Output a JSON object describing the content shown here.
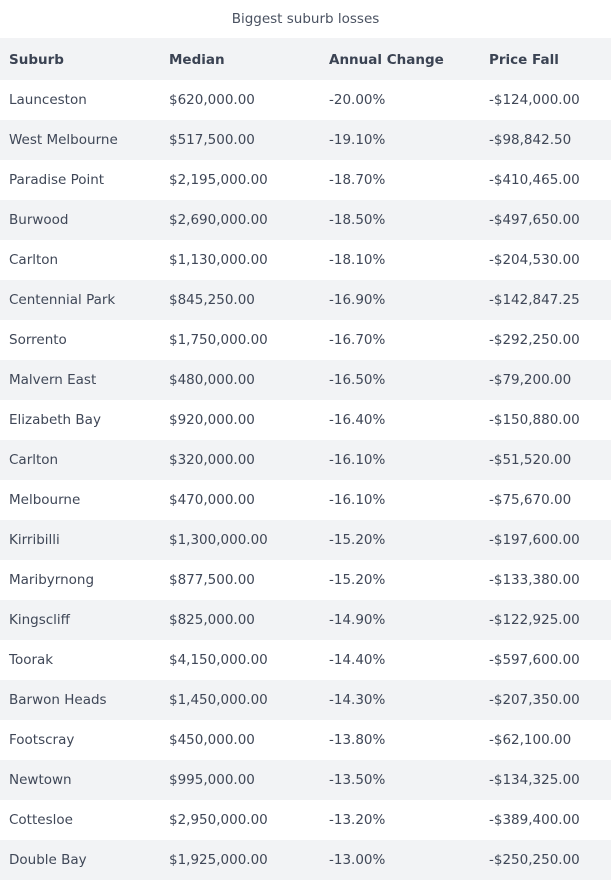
{
  "caption": "Biggest suburb losses",
  "headers": [
    "Suburb",
    "Median",
    "Annual Change",
    "Price Fall"
  ],
  "rows": [
    [
      "Launceston",
      "$620,000.00",
      "-20.00%",
      "-$124,000.00"
    ],
    [
      "West Melbourne",
      "$517,500.00",
      "-19.10%",
      "-$98,842.50"
    ],
    [
      "Paradise Point",
      "$2,195,000.00",
      "-18.70%",
      "-$410,465.00"
    ],
    [
      "Burwood",
      "$2,690,000.00",
      "-18.50%",
      "-$497,650.00"
    ],
    [
      "Carlton",
      "$1,130,000.00",
      "-18.10%",
      "-$204,530.00"
    ],
    [
      "Centennial Park",
      "$845,250.00",
      "-16.90%",
      "-$142,847.25"
    ],
    [
      "Sorrento",
      "$1,750,000.00",
      "-16.70%",
      "-$292,250.00"
    ],
    [
      "Malvern East",
      "$480,000.00",
      "-16.50%",
      "-$79,200.00"
    ],
    [
      "Elizabeth Bay",
      "$920,000.00",
      "-16.40%",
      "-$150,880.00"
    ],
    [
      "Carlton",
      "$320,000.00",
      "-16.10%",
      "-$51,520.00"
    ],
    [
      "Melbourne",
      "$470,000.00",
      "-16.10%",
      "-$75,670.00"
    ],
    [
      "Kirribilli",
      "$1,300,000.00",
      "-15.20%",
      "-$197,600.00"
    ],
    [
      "Maribyrnong",
      "$877,500.00",
      "-15.20%",
      "-$133,380.00"
    ],
    [
      "Kingscliff",
      "$825,000.00",
      "-14.90%",
      "-$122,925.00"
    ],
    [
      "Toorak",
      "$4,150,000.00",
      "-14.40%",
      "-$597,600.00"
    ],
    [
      "Barwon Heads",
      "$1,450,000.00",
      "-14.30%",
      "-$207,350.00"
    ],
    [
      "Footscray",
      "$450,000.00",
      "-13.80%",
      "-$62,100.00"
    ],
    [
      "Newtown",
      "$995,000.00",
      "-13.50%",
      "-$134,325.00"
    ],
    [
      "Cottesloe",
      "$2,950,000.00",
      "-13.20%",
      "-$389,400.00"
    ],
    [
      "Double Bay",
      "$1,925,000.00",
      "-13.00%",
      "-$250,250.00"
    ]
  ],
  "colors": {
    "stripe": "#f2f3f5",
    "text": "#3f4757",
    "background": "#ffffff"
  }
}
